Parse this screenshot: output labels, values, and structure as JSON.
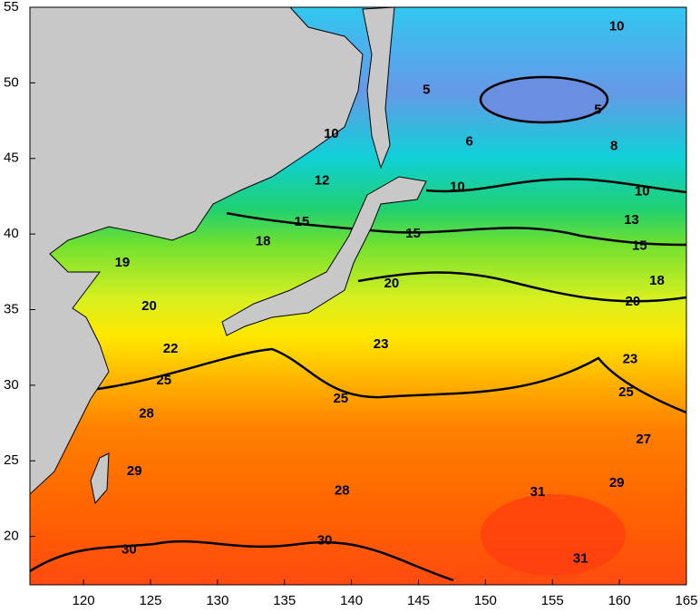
{
  "map": {
    "xlim": [
      116,
      165
    ],
    "ylim": [
      16.8,
      55
    ],
    "xticks": [
      120,
      125,
      130,
      135,
      140,
      145,
      150,
      155,
      160,
      165
    ],
    "yticks": [
      20,
      25,
      30,
      35,
      40,
      45,
      50,
      55
    ],
    "contour_labels": [
      {
        "value": 10,
        "lon": 159.8,
        "lat": 53.7
      },
      {
        "value": 5,
        "lon": 145.6,
        "lat": 49.5
      },
      {
        "value": 5,
        "lon": 158.4,
        "lat": 48.2
      },
      {
        "value": 6,
        "lon": 148.8,
        "lat": 46.1
      },
      {
        "value": 8,
        "lon": 159.6,
        "lat": 45.8
      },
      {
        "value": 10,
        "lon": 138.5,
        "lat": 46.6
      },
      {
        "value": 10,
        "lon": 147.9,
        "lat": 43.1
      },
      {
        "value": 10,
        "lon": 161.7,
        "lat": 42.8
      },
      {
        "value": 12,
        "lon": 137.8,
        "lat": 43.5
      },
      {
        "value": 13,
        "lon": 160.9,
        "lat": 40.9
      },
      {
        "value": 15,
        "lon": 136.3,
        "lat": 40.8
      },
      {
        "value": 15,
        "lon": 144.6,
        "lat": 40.0
      },
      {
        "value": 15,
        "lon": 161.5,
        "lat": 39.2
      },
      {
        "value": 18,
        "lon": 133.4,
        "lat": 39.5
      },
      {
        "value": 18,
        "lon": 162.8,
        "lat": 36.9
      },
      {
        "value": 19,
        "lon": 122.9,
        "lat": 38.1
      },
      {
        "value": 20,
        "lon": 124.9,
        "lat": 35.2
      },
      {
        "value": 20,
        "lon": 143.0,
        "lat": 36.7
      },
      {
        "value": 20,
        "lon": 161.0,
        "lat": 35.5
      },
      {
        "value": 22,
        "lon": 126.5,
        "lat": 32.4
      },
      {
        "value": 23,
        "lon": 142.2,
        "lat": 32.7
      },
      {
        "value": 23,
        "lon": 160.8,
        "lat": 31.7
      },
      {
        "value": 25,
        "lon": 126.0,
        "lat": 30.3
      },
      {
        "value": 25,
        "lon": 139.2,
        "lat": 29.1
      },
      {
        "value": 25,
        "lon": 160.5,
        "lat": 29.5
      },
      {
        "value": 27,
        "lon": 161.8,
        "lat": 26.4
      },
      {
        "value": 28,
        "lon": 124.7,
        "lat": 28.1
      },
      {
        "value": 28,
        "lon": 139.3,
        "lat": 23.0
      },
      {
        "value": 29,
        "lon": 123.8,
        "lat": 24.3
      },
      {
        "value": 29,
        "lon": 159.8,
        "lat": 23.5
      },
      {
        "value": 30,
        "lon": 123.4,
        "lat": 19.1
      },
      {
        "value": 30,
        "lon": 138.0,
        "lat": 19.7
      },
      {
        "value": 31,
        "lon": 153.9,
        "lat": 22.9
      },
      {
        "value": 31,
        "lon": 157.1,
        "lat": 18.5
      }
    ]
  }
}
